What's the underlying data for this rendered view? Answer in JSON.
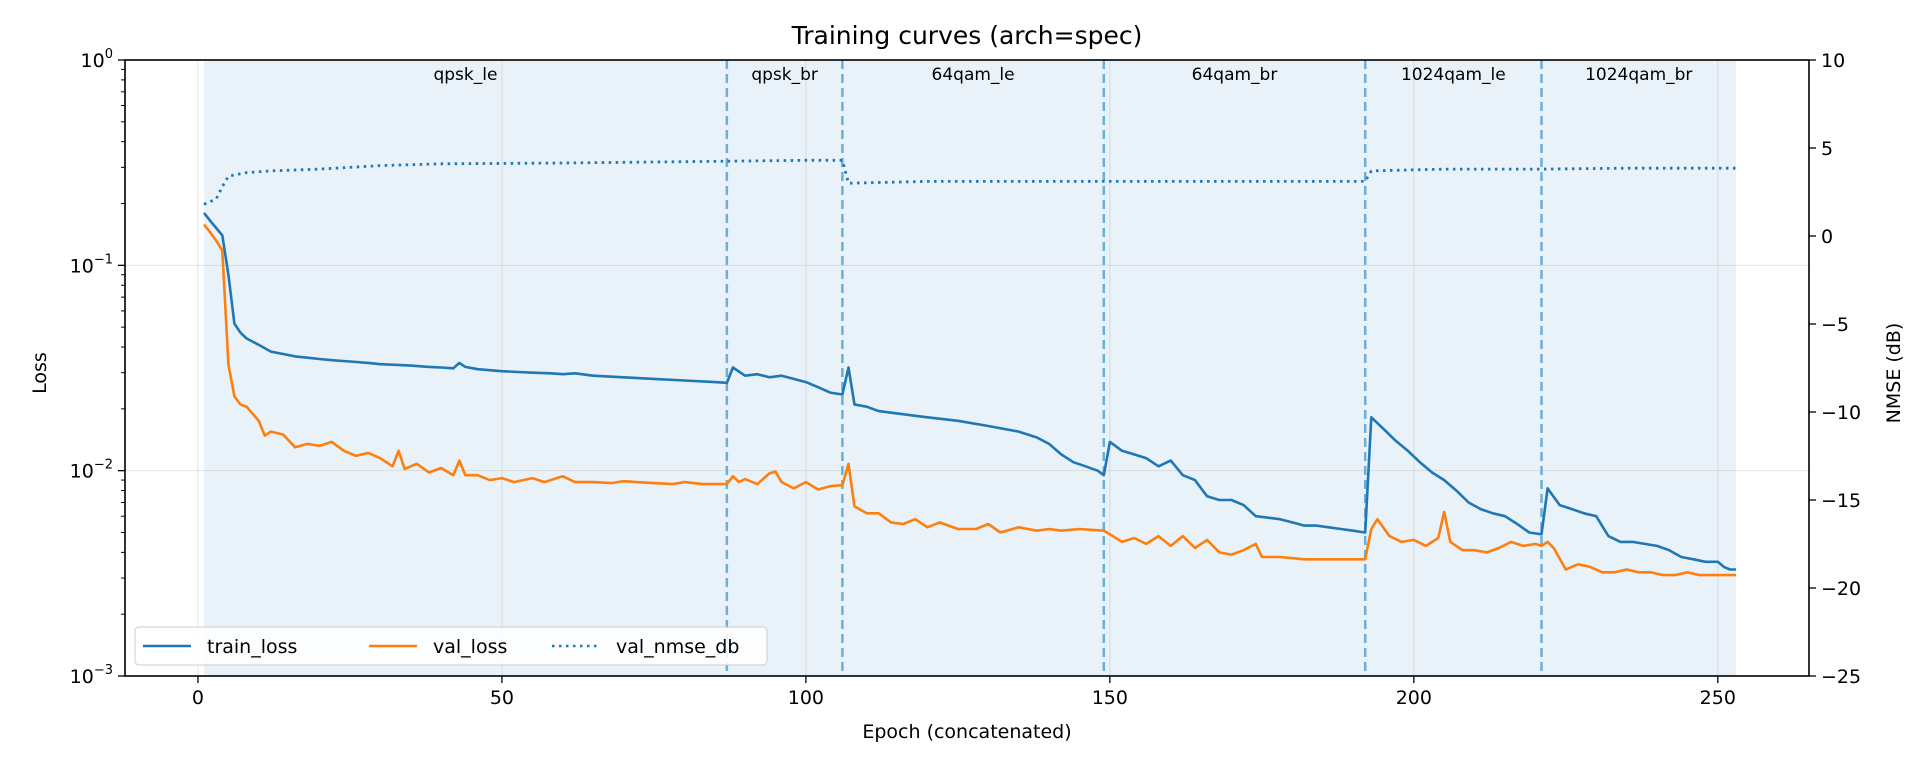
{
  "chart_data": {
    "type": "line",
    "title": "Training curves (arch=spec)",
    "xlabel": "Epoch (concatenated)",
    "ylabel": "Loss",
    "y2label": "NMSE (dB)",
    "xlim": [
      -12,
      265
    ],
    "ylim": [
      0.001,
      1
    ],
    "yscale": "log",
    "y2lim": [
      -25,
      10
    ],
    "x_ticks": [
      "0",
      "50",
      "100",
      "150",
      "200",
      "250"
    ],
    "x_tick_values": [
      0,
      50,
      100,
      150,
      200,
      250
    ],
    "y_ticks": [
      {
        "value": 1,
        "base": "10",
        "exp": "0"
      },
      {
        "value": 0.1,
        "base": "10",
        "exp": "−1"
      },
      {
        "value": 0.01,
        "base": "10",
        "exp": "−2"
      },
      {
        "value": 0.001,
        "base": "10",
        "exp": "−3"
      }
    ],
    "y2_ticks": [
      "10",
      "5",
      "0",
      "−5",
      "−10",
      "−15",
      "−20",
      "−25"
    ],
    "y2_tick_values": [
      10,
      5,
      0,
      -5,
      -10,
      -15,
      -20,
      -25
    ],
    "grid": true,
    "legend_position": "bottom-left",
    "colors": {
      "train_loss": "#1f77b4",
      "val_loss": "#ff7f0e",
      "val_nmse_db": "#1f77b4",
      "stage_fill": "#dce9f5",
      "boundary": "#6baed6"
    },
    "stages": [
      {
        "label": "qpsk_le",
        "start": 1,
        "end": 87
      },
      {
        "label": "qpsk_br",
        "start": 87,
        "end": 106
      },
      {
        "label": "64qam_le",
        "start": 106,
        "end": 149
      },
      {
        "label": "64qam_br",
        "start": 149,
        "end": 192
      },
      {
        "label": "1024qam_le",
        "start": 192,
        "end": 221
      },
      {
        "label": "1024qam_br",
        "start": 221,
        "end": 253
      }
    ],
    "boundaries": [
      87,
      106,
      149,
      192,
      221
    ],
    "series": [
      {
        "name": "train_loss",
        "axis": "left",
        "style": "solid",
        "points": [
          [
            1,
            0.18
          ],
          [
            2,
            0.165
          ],
          [
            3,
            0.152
          ],
          [
            4,
            0.14
          ],
          [
            5,
            0.09
          ],
          [
            6,
            0.052
          ],
          [
            7,
            0.047
          ],
          [
            8,
            0.044
          ],
          [
            10,
            0.041
          ],
          [
            12,
            0.038
          ],
          [
            14,
            0.037
          ],
          [
            16,
            0.036
          ],
          [
            18,
            0.0355
          ],
          [
            20,
            0.035
          ],
          [
            22,
            0.0345
          ],
          [
            25,
            0.034
          ],
          [
            28,
            0.0335
          ],
          [
            30,
            0.033
          ],
          [
            32,
            0.0328
          ],
          [
            35,
            0.0325
          ],
          [
            38,
            0.032
          ],
          [
            40,
            0.0318
          ],
          [
            42,
            0.0315
          ],
          [
            43,
            0.0335
          ],
          [
            44,
            0.032
          ],
          [
            46,
            0.0312
          ],
          [
            50,
            0.0305
          ],
          [
            55,
            0.03
          ],
          [
            58,
            0.0298
          ],
          [
            60,
            0.0295
          ],
          [
            62,
            0.0298
          ],
          [
            65,
            0.029
          ],
          [
            70,
            0.0285
          ],
          [
            75,
            0.028
          ],
          [
            80,
            0.0275
          ],
          [
            85,
            0.027
          ],
          [
            87,
            0.0268
          ],
          [
            88,
            0.0318
          ],
          [
            90,
            0.029
          ],
          [
            92,
            0.0295
          ],
          [
            94,
            0.0285
          ],
          [
            96,
            0.029
          ],
          [
            98,
            0.028
          ],
          [
            100,
            0.027
          ],
          [
            102,
            0.0255
          ],
          [
            104,
            0.024
          ],
          [
            106,
            0.0235
          ],
          [
            107,
            0.0318
          ],
          [
            108,
            0.021
          ],
          [
            110,
            0.0205
          ],
          [
            112,
            0.0195
          ],
          [
            115,
            0.019
          ],
          [
            118,
            0.0185
          ],
          [
            120,
            0.0182
          ],
          [
            125,
            0.0175
          ],
          [
            130,
            0.0165
          ],
          [
            135,
            0.0155
          ],
          [
            138,
            0.0145
          ],
          [
            140,
            0.0135
          ],
          [
            142,
            0.012
          ],
          [
            144,
            0.011
          ],
          [
            146,
            0.0105
          ],
          [
            148,
            0.01
          ],
          [
            149,
            0.0095
          ],
          [
            150,
            0.0138
          ],
          [
            152,
            0.0125
          ],
          [
            154,
            0.012
          ],
          [
            156,
            0.0115
          ],
          [
            158,
            0.0105
          ],
          [
            160,
            0.0112
          ],
          [
            162,
            0.0095
          ],
          [
            164,
            0.009
          ],
          [
            166,
            0.0075
          ],
          [
            168,
            0.0072
          ],
          [
            170,
            0.0072
          ],
          [
            172,
            0.0068
          ],
          [
            174,
            0.006
          ],
          [
            176,
            0.0059
          ],
          [
            178,
            0.0058
          ],
          [
            180,
            0.0056
          ],
          [
            182,
            0.0054
          ],
          [
            184,
            0.0054
          ],
          [
            186,
            0.0053
          ],
          [
            188,
            0.0052
          ],
          [
            190,
            0.0051
          ],
          [
            192,
            0.005
          ],
          [
            193,
            0.0182
          ],
          [
            195,
            0.016
          ],
          [
            197,
            0.014
          ],
          [
            199,
            0.0125
          ],
          [
            201,
            0.011
          ],
          [
            203,
            0.0098
          ],
          [
            205,
            0.009
          ],
          [
            207,
            0.008
          ],
          [
            209,
            0.007
          ],
          [
            211,
            0.0065
          ],
          [
            213,
            0.0062
          ],
          [
            215,
            0.006
          ],
          [
            217,
            0.0055
          ],
          [
            219,
            0.005
          ],
          [
            221,
            0.0049
          ],
          [
            222,
            0.0082
          ],
          [
            224,
            0.0068
          ],
          [
            226,
            0.0065
          ],
          [
            228,
            0.0062
          ],
          [
            230,
            0.006
          ],
          [
            232,
            0.0048
          ],
          [
            234,
            0.0045
          ],
          [
            236,
            0.0045
          ],
          [
            238,
            0.0044
          ],
          [
            240,
            0.0043
          ],
          [
            242,
            0.0041
          ],
          [
            244,
            0.0038
          ],
          [
            246,
            0.0037
          ],
          [
            248,
            0.0036
          ],
          [
            250,
            0.0036
          ],
          [
            251,
            0.0034
          ],
          [
            252,
            0.0033
          ],
          [
            253,
            0.0033
          ]
        ]
      },
      {
        "name": "val_loss",
        "axis": "left",
        "style": "solid",
        "points": [
          [
            1,
            0.158
          ],
          [
            2,
            0.145
          ],
          [
            3,
            0.132
          ],
          [
            4,
            0.118
          ],
          [
            5,
            0.033
          ],
          [
            6,
            0.023
          ],
          [
            7,
            0.021
          ],
          [
            8,
            0.0205
          ],
          [
            10,
            0.0175
          ],
          [
            11,
            0.0148
          ],
          [
            12,
            0.0155
          ],
          [
            14,
            0.015
          ],
          [
            16,
            0.013
          ],
          [
            18,
            0.0135
          ],
          [
            20,
            0.0132
          ],
          [
            22,
            0.0138
          ],
          [
            24,
            0.0125
          ],
          [
            26,
            0.0118
          ],
          [
            28,
            0.0122
          ],
          [
            30,
            0.0115
          ],
          [
            32,
            0.0105
          ],
          [
            33,
            0.0125
          ],
          [
            34,
            0.0102
          ],
          [
            36,
            0.0108
          ],
          [
            38,
            0.0098
          ],
          [
            40,
            0.0103
          ],
          [
            42,
            0.0095
          ],
          [
            43,
            0.0112
          ],
          [
            44,
            0.0095
          ],
          [
            46,
            0.0095
          ],
          [
            48,
            0.009
          ],
          [
            50,
            0.0092
          ],
          [
            52,
            0.0088
          ],
          [
            55,
            0.0092
          ],
          [
            57,
            0.0088
          ],
          [
            60,
            0.0094
          ],
          [
            62,
            0.0088
          ],
          [
            65,
            0.0088
          ],
          [
            68,
            0.0087
          ],
          [
            70,
            0.0089
          ],
          [
            72,
            0.0088
          ],
          [
            75,
            0.0087
          ],
          [
            78,
            0.0086
          ],
          [
            80,
            0.0088
          ],
          [
            83,
            0.0086
          ],
          [
            85,
            0.0086
          ],
          [
            87,
            0.0086
          ],
          [
            88,
            0.0094
          ],
          [
            89,
            0.0088
          ],
          [
            90,
            0.0091
          ],
          [
            92,
            0.0086
          ],
          [
            94,
            0.0097
          ],
          [
            95,
            0.0099
          ],
          [
            96,
            0.0088
          ],
          [
            98,
            0.0082
          ],
          [
            100,
            0.0088
          ],
          [
            102,
            0.0081
          ],
          [
            104,
            0.0084
          ],
          [
            106,
            0.0085
          ],
          [
            107,
            0.0108
          ],
          [
            108,
            0.0067
          ],
          [
            110,
            0.0062
          ],
          [
            112,
            0.0062
          ],
          [
            114,
            0.0056
          ],
          [
            116,
            0.0055
          ],
          [
            118,
            0.0058
          ],
          [
            120,
            0.0053
          ],
          [
            122,
            0.0056
          ],
          [
            125,
            0.0052
          ],
          [
            128,
            0.0052
          ],
          [
            130,
            0.0055
          ],
          [
            132,
            0.005
          ],
          [
            135,
            0.0053
          ],
          [
            138,
            0.0051
          ],
          [
            140,
            0.0052
          ],
          [
            142,
            0.0051
          ],
          [
            145,
            0.0052
          ],
          [
            149,
            0.0051
          ],
          [
            150,
            0.0049
          ],
          [
            152,
            0.0045
          ],
          [
            154,
            0.0047
          ],
          [
            156,
            0.0044
          ],
          [
            158,
            0.0048
          ],
          [
            160,
            0.0043
          ],
          [
            162,
            0.0048
          ],
          [
            164,
            0.0042
          ],
          [
            166,
            0.0046
          ],
          [
            168,
            0.004
          ],
          [
            170,
            0.0039
          ],
          [
            172,
            0.0041
          ],
          [
            174,
            0.0044
          ],
          [
            175,
            0.0038
          ],
          [
            178,
            0.0038
          ],
          [
            182,
            0.0037
          ],
          [
            186,
            0.0037
          ],
          [
            190,
            0.0037
          ],
          [
            192,
            0.0037
          ],
          [
            193,
            0.0052
          ],
          [
            194,
            0.0058
          ],
          [
            196,
            0.0048
          ],
          [
            198,
            0.0045
          ],
          [
            200,
            0.0046
          ],
          [
            202,
            0.0043
          ],
          [
            204,
            0.0047
          ],
          [
            205,
            0.0063
          ],
          [
            206,
            0.0045
          ],
          [
            208,
            0.0041
          ],
          [
            210,
            0.0041
          ],
          [
            212,
            0.004
          ],
          [
            214,
            0.0042
          ],
          [
            216,
            0.0045
          ],
          [
            218,
            0.0043
          ],
          [
            220,
            0.0044
          ],
          [
            221,
            0.0043
          ],
          [
            222,
            0.0045
          ],
          [
            223,
            0.0042
          ],
          [
            225,
            0.0033
          ],
          [
            227,
            0.0035
          ],
          [
            229,
            0.0034
          ],
          [
            231,
            0.0032
          ],
          [
            233,
            0.0032
          ],
          [
            235,
            0.0033
          ],
          [
            237,
            0.0032
          ],
          [
            239,
            0.0032
          ],
          [
            241,
            0.0031
          ],
          [
            243,
            0.0031
          ],
          [
            245,
            0.0032
          ],
          [
            247,
            0.0031
          ],
          [
            249,
            0.0031
          ],
          [
            251,
            0.0031
          ],
          [
            253,
            0.0031
          ]
        ]
      },
      {
        "name": "val_nmse_db",
        "axis": "right",
        "style": "dotted",
        "points": [
          [
            1,
            1.8
          ],
          [
            3,
            2.1
          ],
          [
            4,
            2.8
          ],
          [
            5,
            3.4
          ],
          [
            8,
            3.6
          ],
          [
            12,
            3.7
          ],
          [
            20,
            3.8
          ],
          [
            30,
            4.0
          ],
          [
            40,
            4.1
          ],
          [
            60,
            4.15
          ],
          [
            87,
            4.25
          ],
          [
            100,
            4.3
          ],
          [
            106,
            4.3
          ],
          [
            107,
            3.0
          ],
          [
            120,
            3.1
          ],
          [
            149,
            3.1
          ],
          [
            165,
            3.1
          ],
          [
            192,
            3.1
          ],
          [
            193,
            3.7
          ],
          [
            205,
            3.8
          ],
          [
            221,
            3.8
          ],
          [
            235,
            3.85
          ],
          [
            253,
            3.85
          ]
        ]
      }
    ]
  }
}
